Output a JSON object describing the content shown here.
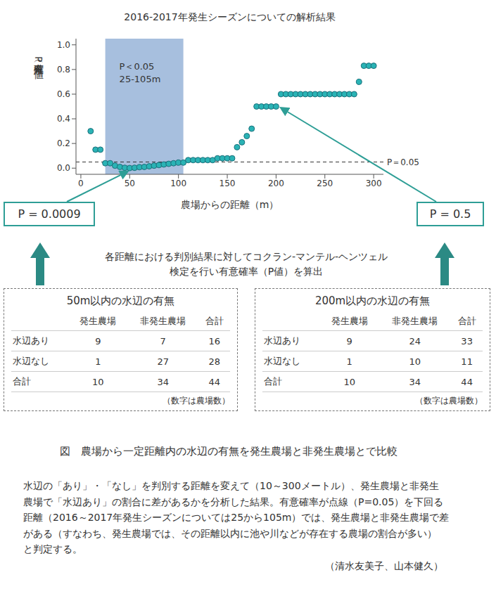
{
  "chart_data": {
    "type": "scatter",
    "title": "2016-2017年発生シーズンについての解析結果",
    "x_label": "農場からの距離（m）",
    "y_label": "有意確率（P値）",
    "x": [
      10,
      15,
      20,
      25,
      30,
      35,
      40,
      45,
      50,
      55,
      60,
      65,
      70,
      75,
      80,
      85,
      90,
      95,
      100,
      105,
      110,
      115,
      120,
      125,
      130,
      135,
      140,
      145,
      150,
      155,
      160,
      165,
      170,
      175,
      180,
      185,
      190,
      195,
      200,
      205,
      210,
      215,
      220,
      225,
      230,
      235,
      240,
      245,
      250,
      255,
      260,
      265,
      270,
      275,
      280,
      285,
      290,
      295,
      300
    ],
    "values": [
      0.3,
      0.15,
      0.15,
      0.04,
      0.04,
      0.02,
      0.01,
      0.003,
      0.0009,
      0.003,
      0.008,
      0.01,
      0.015,
      0.02,
      0.025,
      0.03,
      0.035,
      0.04,
      0.045,
      0.045,
      0.065,
      0.065,
      0.065,
      0.065,
      0.065,
      0.065,
      0.08,
      0.08,
      0.08,
      0.08,
      0.17,
      0.21,
      0.26,
      0.32,
      0.5,
      0.5,
      0.5,
      0.5,
      0.5,
      0.6,
      0.6,
      0.6,
      0.6,
      0.6,
      0.6,
      0.6,
      0.6,
      0.6,
      0.6,
      0.6,
      0.6,
      0.6,
      0.6,
      0.6,
      0.6,
      0.7,
      0.83,
      0.83,
      0.83
    ],
    "color": "#2ab3b5",
    "marker": "circle",
    "grid": false,
    "xlim": [
      -5,
      310
    ],
    "xticks": [
      0,
      50,
      100,
      150,
      200,
      250,
      300
    ],
    "ylim": [
      -0.05,
      1.05
    ],
    "yticks": [
      {
        "value": 0,
        "label": "0.0"
      },
      0.2,
      0.4,
      0.6,
      0.8,
      {
        "value": 1,
        "label": "1.0"
      }
    ],
    "reference_line": {
      "value": 0.05,
      "label": "P＝0.05",
      "line_style": "dashed"
    },
    "shaded_region": {
      "from": 25,
      "to": 105,
      "label": [
        "P＜0.05",
        "25-105m"
      ],
      "color": "#a7bfde"
    },
    "annotations": [
      {
        "text": "P = 0.0009",
        "x": 50,
        "y": 0.0009
      },
      {
        "text": "P = 0.5",
        "x": 200,
        "y": 0.5
      }
    ]
  },
  "method_note": [
    "各距離における判別結果に対してコクラン-マンテル-ヘンツェル",
    "検定を行い有意確率（P値）を算出"
  ],
  "tables": [
    {
      "title": "50m以内の水辺の有無",
      "header": [
        "発生農場",
        "非発生農場",
        "合計"
      ],
      "rows": [
        {
          "label": "水辺あり",
          "values": [
            9,
            7,
            16
          ]
        },
        {
          "label": "水辺なし",
          "values": [
            1,
            27,
            28
          ]
        },
        {
          "label": "合計",
          "values": [
            10,
            34,
            44
          ]
        }
      ],
      "note": "（数字は農場数）"
    },
    {
      "title": "200m以内の水辺の有無",
      "header": [
        "発生農場",
        "非発生農場",
        "合計"
      ],
      "rows": [
        {
          "label": "水辺あり",
          "values": [
            9,
            24,
            33
          ]
        },
        {
          "label": "水辺なし",
          "values": [
            1,
            10,
            11
          ]
        },
        {
          "label": "合計",
          "values": [
            10,
            34,
            44
          ]
        }
      ],
      "note": "（数字は農場数）"
    }
  ],
  "caption": "図　農場から一定距離内の水辺の有無を発生農場と非発生農場とで比較",
  "description": [
    "水辺の「あり」・「なし」を判別する距離を変えて（10～300メートル）、発生農場と非発生",
    "農場で「水辺あり」の割合に差があるかを分析した結果。有意確率が点線（P=0.05）を下回る",
    "距離（2016～2017年発生シーズンについては25から105m）では、発生農場と非発生農場で差",
    "がある（すなわち、発生農場では、その距離以内に池や川などが存在する農場の割合が多い）",
    "と判定する。"
  ],
  "authors": "（清水友美子、山本健久）"
}
